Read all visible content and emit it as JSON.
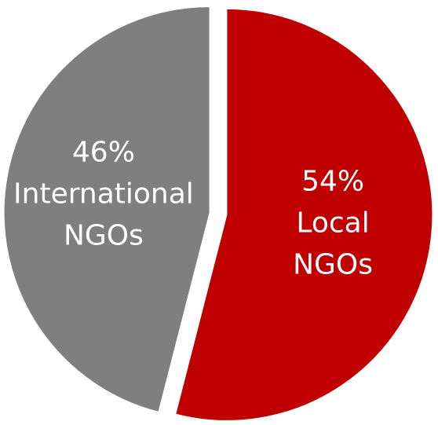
{
  "chart_data": {
    "type": "pie",
    "categories": [
      "Local NGOs",
      "International NGOs"
    ],
    "values": [
      54,
      46
    ],
    "value_labels": [
      "54%",
      "46%"
    ],
    "colors": [
      "#c00000",
      "#7f7f7f"
    ]
  }
}
